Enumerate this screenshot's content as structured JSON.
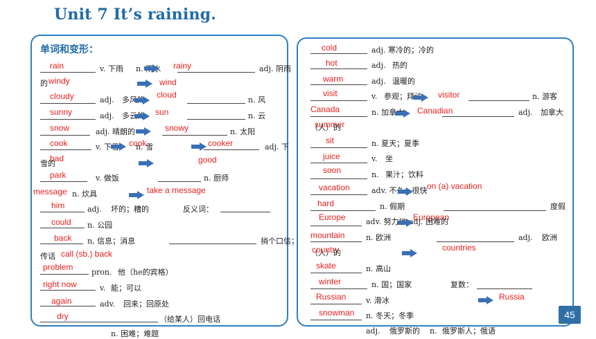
{
  "title": "Unit 7 It’s raining.",
  "heading": "单词和变形：",
  "page_number": "45",
  "left_answers": [
    "rain",
    "rainy",
    "windy",
    "wind",
    "cloudy",
    "cloud",
    "sunny",
    "sun",
    "snow",
    "snowy",
    "cook",
    "cook",
    "cooker",
    "bad",
    "good",
    "park",
    "message",
    "take a message",
    "him",
    "could",
    "back",
    "call (sb.) back",
    "problem",
    "right now",
    "again",
    "dry"
  ],
  "left_text": [
    "v. 下雨",
    "n. 雨水",
    "adj. 阴雨",
    "的",
    "adj.",
    "多风的",
    "n. 风",
    "adj.",
    "多云的",
    "n. 云",
    "adj. 晴朗的",
    "n. 太阳",
    "v. 下雪",
    "n. 雪",
    "adj. 下",
    "雪的",
    "v. 做饭",
    "n. 厨师",
    "n. 炊具",
    "adj.",
    "坏的；糟的",
    "反义词：",
    "n. 公园",
    "n, 信息；消息",
    "捎个口信；",
    "传话",
    "pron.",
    "他（he的宾格）",
    "v.",
    "能；可以",
    "adv.",
    "回来；回原处",
    "（给某人）回电话",
    "n. 困难；难题"
  ],
  "right_answers": [
    "cold",
    "hot",
    "warm",
    "visit",
    "visitor",
    "Canada",
    "Canadian",
    "summer",
    "sit",
    "juice",
    "soon",
    "vacation",
    "on (a) vacation",
    "hard",
    "Europe",
    "European",
    "mountain",
    "countries",
    "country",
    "skate",
    "winter",
    "Russian",
    "Russia",
    "snowman"
  ],
  "right_text": [
    "adj. 寒冷的；冷的",
    "adj.",
    "热的",
    "adj.",
    "温暖的",
    "v.",
    "参观；拜访",
    "n. 游客",
    "n. 加拿大",
    "adj.",
    "加拿大",
    "（人）的",
    "n. 夏天；夏季",
    "v.",
    "坐",
    "n.",
    "果汁；饮料",
    "adv. 不久；很快",
    "n. 假期",
    "度假",
    "adv. 努力地 adj. 困难的",
    "n. 欧洲",
    "adj.",
    "欧洲",
    "（人）的",
    "n. 高山",
    "n. 国；国家",
    "复数：",
    "v. 滑冰",
    "n. 冬天；冬季",
    "adj.",
    "俄罗斯的",
    "n.",
    "俄罗斯人；俄语"
  ],
  "colors": {
    "title": "#1f6aa8",
    "border": "#2f7fc1",
    "answer": "#e8201d",
    "arrow": "#3a6fb5",
    "page_badge": "#2f6fa6"
  },
  "icons": [
    "arrow-right-icon"
  ]
}
